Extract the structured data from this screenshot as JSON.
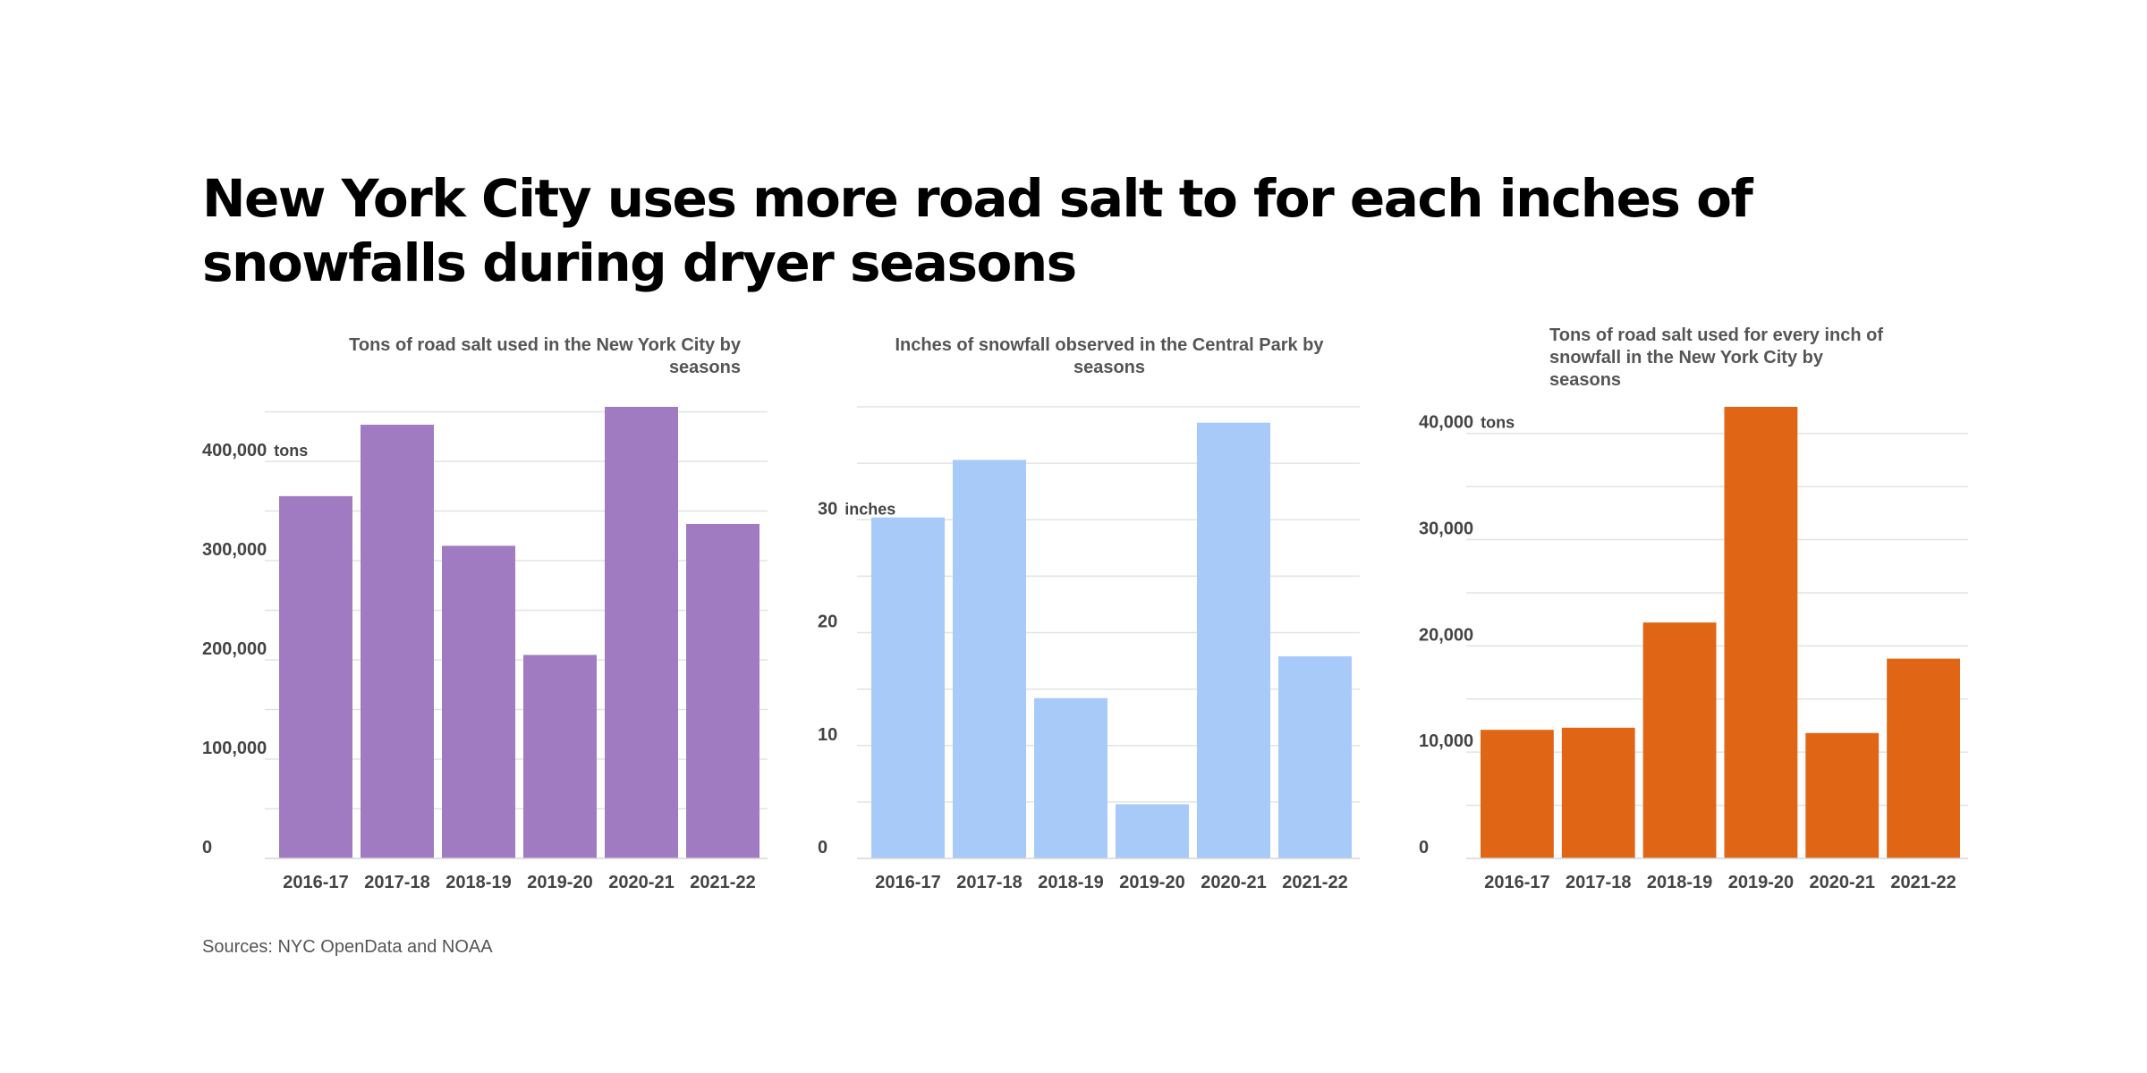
{
  "headline": "New York City uses more road salt to for each inches of snowfalls during dryer seasons",
  "source": "Sources: NYC OpenData and NOAA",
  "chart_data": [
    {
      "type": "bar",
      "title": "Tons of road salt used in the New York City by seasons",
      "categories": [
        "2016-17",
        "2017-18",
        "2018-19",
        "2019-20",
        "2020-21",
        "2021-22"
      ],
      "values": [
        365000,
        437000,
        315000,
        205000,
        455000,
        337000
      ],
      "ylim": [
        0,
        455000
      ],
      "ticks": [
        0,
        100000,
        200000,
        300000,
        400000
      ],
      "tick_labels": [
        "0",
        "100,000",
        "200,000",
        "300,000",
        "400,000"
      ],
      "unit_label": "tons",
      "color": "#a07bc1",
      "grid": true
    },
    {
      "type": "bar",
      "title": "Inches of snowfall observed in the Central Park by seasons",
      "categories": [
        "2016-17",
        "2017-18",
        "2018-19",
        "2019-20",
        "2020-21",
        "2021-22"
      ],
      "values": [
        30.2,
        35.3,
        14.2,
        4.8,
        38.6,
        17.9
      ],
      "ylim": [
        0,
        40
      ],
      "ticks": [
        0,
        10,
        20,
        30
      ],
      "tick_labels": [
        "0",
        "10",
        "20",
        "30"
      ],
      "unit_label": "inches",
      "color": "#a8caf9",
      "grid": true
    },
    {
      "type": "bar",
      "title": "Tons of road salt used for every inch of snowfall in the New York City by seasons",
      "categories": [
        "2016-17",
        "2017-18",
        "2018-19",
        "2019-20",
        "2020-21",
        "2021-22"
      ],
      "values": [
        12100,
        12300,
        22200,
        42500,
        11800,
        18800
      ],
      "ylim": [
        0,
        42500
      ],
      "ticks": [
        0,
        10000,
        20000,
        30000,
        40000
      ],
      "tick_labels": [
        "0",
        "10,000",
        "20,000",
        "30,000",
        "40,000"
      ],
      "unit_label": "tons",
      "color": "#e06616",
      "grid": true
    }
  ]
}
